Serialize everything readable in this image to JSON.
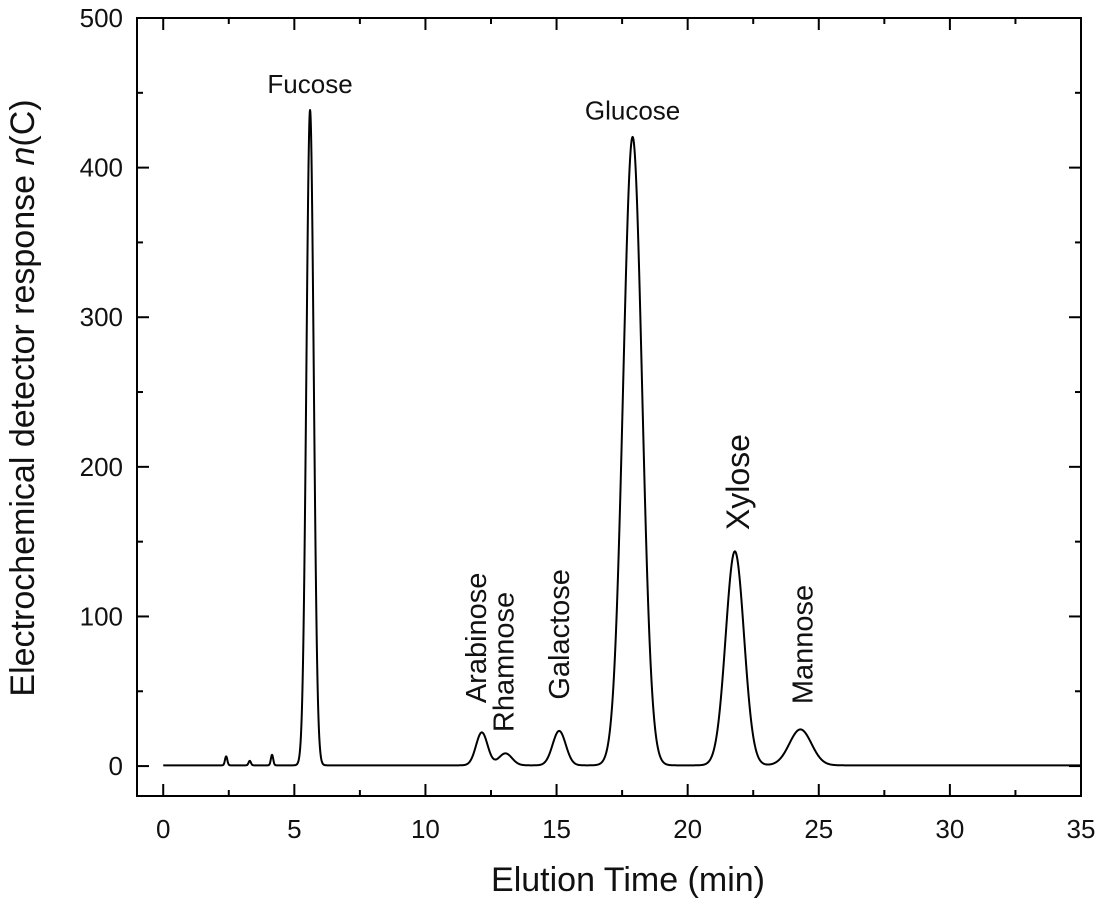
{
  "chart_data": {
    "type": "line",
    "title": "",
    "xlabel": "Elution Time (min)",
    "ylabel_main": "Electrochemical detector response ",
    "ylabel_italic": "n",
    "ylabel_unit": "(C)",
    "xlim": [
      -1,
      35
    ],
    "ylim": [
      -20,
      500
    ],
    "xticks": [
      0,
      5,
      10,
      15,
      20,
      25,
      30,
      35
    ],
    "yticks": [
      0,
      100,
      200,
      300,
      400,
      500
    ],
    "xtick_labels": [
      "0",
      "5",
      "10",
      "15",
      "20",
      "25",
      "30",
      "35"
    ],
    "ytick_labels": [
      "0",
      "100",
      "200",
      "300",
      "400",
      "500"
    ],
    "grid": false,
    "line_color": "#000000",
    "peaks": [
      {
        "name": "Fucose",
        "x": 5.6,
        "y": 438,
        "rotated": false
      },
      {
        "name": "Arabinose",
        "x": 12.15,
        "y": 22,
        "rotated": true
      },
      {
        "name": "Rhamnose",
        "x": 13.05,
        "y": 8,
        "rotated": true
      },
      {
        "name": "Galactose",
        "x": 15.1,
        "y": 23,
        "rotated": true
      },
      {
        "name": "Glucose",
        "x": 17.9,
        "y": 420,
        "rotated": false
      },
      {
        "name": "Xylose",
        "x": 21.8,
        "y": 143,
        "rotated": true
      },
      {
        "name": "Mannose",
        "x": 24.3,
        "y": 24,
        "rotated": true
      }
    ],
    "minor_peaks": [
      {
        "x": 2.4,
        "y": 6
      },
      {
        "x": 3.3,
        "y": 3
      },
      {
        "x": 4.15,
        "y": 7
      }
    ]
  }
}
